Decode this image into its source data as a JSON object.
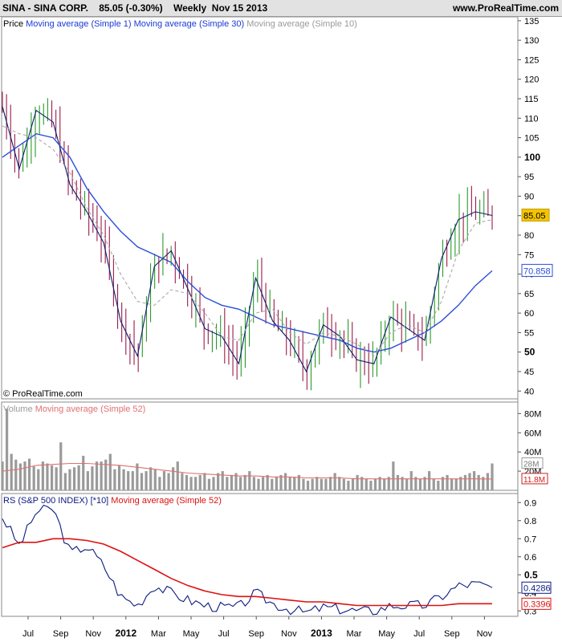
{
  "header": {
    "symbol": "SINA - SINA CORP.",
    "price_change": "85.05 (-0.30%)",
    "period": "Weekly",
    "date": "Nov 15 2013",
    "site": "www.ProRealTime.com"
  },
  "price_panel": {
    "legend": [
      "Price",
      "Moving average (Simple 1)",
      "Moving average (Simple 30)",
      "Moving average (Simple 10)"
    ],
    "copyright": "© ProRealTime.com",
    "y_ticks": [
      40,
      45,
      50,
      55,
      60,
      65,
      70,
      75,
      80,
      85,
      90,
      95,
      100,
      105,
      110,
      115,
      120,
      125,
      130,
      135
    ],
    "y_bold": [
      50,
      100
    ],
    "ylim": [
      38,
      136
    ],
    "last_price_label": "85.05",
    "ma30_label": "70.858",
    "colors": {
      "up": "#2a9a2a",
      "down": "#9b1b4b",
      "ma1": "#0b1f6b",
      "ma30": "#2a4fd8",
      "ma10": "#aaaaaa",
      "price_box": "#f5c400"
    }
  },
  "volume_panel": {
    "legend": [
      "Volume",
      "Moving average (Simple 52)"
    ],
    "y_ticks": [
      "20M",
      "40M",
      "60M",
      "80M"
    ],
    "ylim": [
      0,
      92
    ],
    "vol_label": "28M",
    "ma_label": "11.8M",
    "colors": {
      "bar": "#9a9a9a",
      "ma": "#e07070",
      "ma_label": "#cc2222"
    }
  },
  "rs_panel": {
    "legend": [
      "RS (S&P 500 INDEX) [*10]",
      "Moving average (Simple 52)"
    ],
    "y_ticks": [
      0.3,
      0.4,
      0.5,
      0.6,
      0.7,
      0.8,
      0.9
    ],
    "y_bold": [
      0.5
    ],
    "ylim": [
      0.27,
      0.95
    ],
    "rs_label": "0.4286",
    "ma_label": "0.3396",
    "colors": {
      "rs": "#0b1a80",
      "ma": "#dd1111"
    }
  },
  "x_axis": {
    "labels": [
      "Jul",
      "Sep",
      "Nov",
      "2012",
      "Mar",
      "May",
      "Jul",
      "Sep",
      "Nov",
      "2013",
      "Mar",
      "May",
      "Jul",
      "Sep",
      "Nov"
    ],
    "bold": [
      "2012",
      "2013"
    ]
  },
  "chart_data": [
    {
      "type": "line",
      "title": "SINA - SINA CORP. Weekly",
      "x": [
        "2011-06",
        "2011-07",
        "2011-08",
        "2011-09",
        "2011-10",
        "2011-11",
        "2011-12",
        "2012-01",
        "2012-02",
        "2012-03",
        "2012-04",
        "2012-05",
        "2012-06",
        "2012-07",
        "2012-08",
        "2012-09",
        "2012-10",
        "2012-11",
        "2012-12",
        "2013-01",
        "2013-02",
        "2013-03",
        "2013-04",
        "2013-05",
        "2013-06",
        "2013-07",
        "2013-08",
        "2013-09",
        "2013-10",
        "2013-11"
      ],
      "series": [
        {
          "name": "Moving average (Simple 1)",
          "values": [
            113,
            97,
            112,
            109,
            93,
            86,
            78,
            58,
            49,
            72,
            76,
            66,
            56,
            54,
            47,
            69,
            58,
            53,
            45,
            57,
            54,
            48,
            47,
            59,
            56,
            53,
            74,
            84,
            86,
            85.05
          ]
        },
        {
          "name": "Moving average (Simple 30)",
          "values": [
            100,
            103,
            106,
            105,
            100,
            92,
            86,
            81,
            77,
            75,
            73,
            68,
            64,
            62,
            61,
            59,
            57,
            56,
            55,
            54,
            53,
            51,
            50,
            51,
            53,
            55,
            58,
            62,
            67,
            70.858
          ]
        },
        {
          "name": "Moving average (Simple 10)",
          "values": [
            108,
            106,
            105,
            102,
            96,
            87,
            80,
            70,
            63,
            62,
            66,
            65,
            60,
            54,
            53,
            60,
            61,
            55,
            52,
            55,
            54,
            52,
            49,
            55,
            57,
            55,
            63,
            76,
            83,
            84
          ]
        }
      ]
    },
    {
      "type": "bar",
      "title": "Volume",
      "values": [
        30,
        85,
        38,
        32,
        28,
        30,
        33,
        25,
        22,
        30,
        28,
        26,
        24,
        50,
        18,
        22,
        24,
        26,
        36,
        20,
        25,
        30,
        30,
        32,
        38,
        22,
        26,
        22,
        20,
        20,
        28,
        18,
        20,
        24,
        22,
        14,
        20,
        18,
        24,
        30,
        18,
        16,
        14,
        14,
        16,
        18,
        12,
        14,
        18,
        20,
        14,
        16,
        18,
        14,
        16,
        20,
        14,
        12,
        14,
        16,
        12,
        14,
        16,
        18,
        14,
        14,
        16,
        12,
        10,
        12,
        14,
        12,
        12,
        14,
        18,
        14,
        12,
        10,
        12,
        16,
        14,
        12,
        10,
        12,
        14,
        12,
        14,
        30,
        16,
        14,
        12,
        20,
        14,
        12,
        14,
        20,
        12,
        10,
        14,
        16,
        12,
        12,
        14,
        16,
        18,
        20,
        16,
        14,
        18,
        28
      ],
      "series": [
        {
          "name": "Moving average (Simple 52)",
          "values": [
            20,
            22,
            26,
            27,
            28,
            28,
            27,
            26,
            24,
            22,
            20,
            18,
            17,
            16,
            15,
            15,
            14,
            14,
            13,
            13,
            13,
            12,
            12,
            12,
            12,
            12,
            12,
            12,
            12,
            11.8
          ]
        }
      ],
      "ylim": [
        0,
        92
      ]
    },
    {
      "type": "line",
      "title": "RS (S&P 500 INDEX) [*10]",
      "series": [
        {
          "name": "RS (S&P 500 INDEX) [*10]",
          "values": [
            0.82,
            0.66,
            0.85,
            0.87,
            0.62,
            0.66,
            0.55,
            0.38,
            0.33,
            0.44,
            0.4,
            0.36,
            0.33,
            0.32,
            0.32,
            0.4,
            0.34,
            0.31,
            0.29,
            0.32,
            0.31,
            0.3,
            0.3,
            0.33,
            0.33,
            0.33,
            0.38,
            0.44,
            0.45,
            0.4286
          ]
        },
        {
          "name": "Moving average (Simple 52)",
          "values": [
            0.65,
            0.68,
            0.68,
            0.7,
            0.7,
            0.69,
            0.67,
            0.63,
            0.58,
            0.53,
            0.48,
            0.44,
            0.41,
            0.39,
            0.38,
            0.38,
            0.37,
            0.36,
            0.35,
            0.35,
            0.34,
            0.33,
            0.33,
            0.33,
            0.33,
            0.33,
            0.33,
            0.34,
            0.34,
            0.3396
          ]
        }
      ],
      "ylim": [
        0.27,
        0.95
      ]
    }
  ]
}
